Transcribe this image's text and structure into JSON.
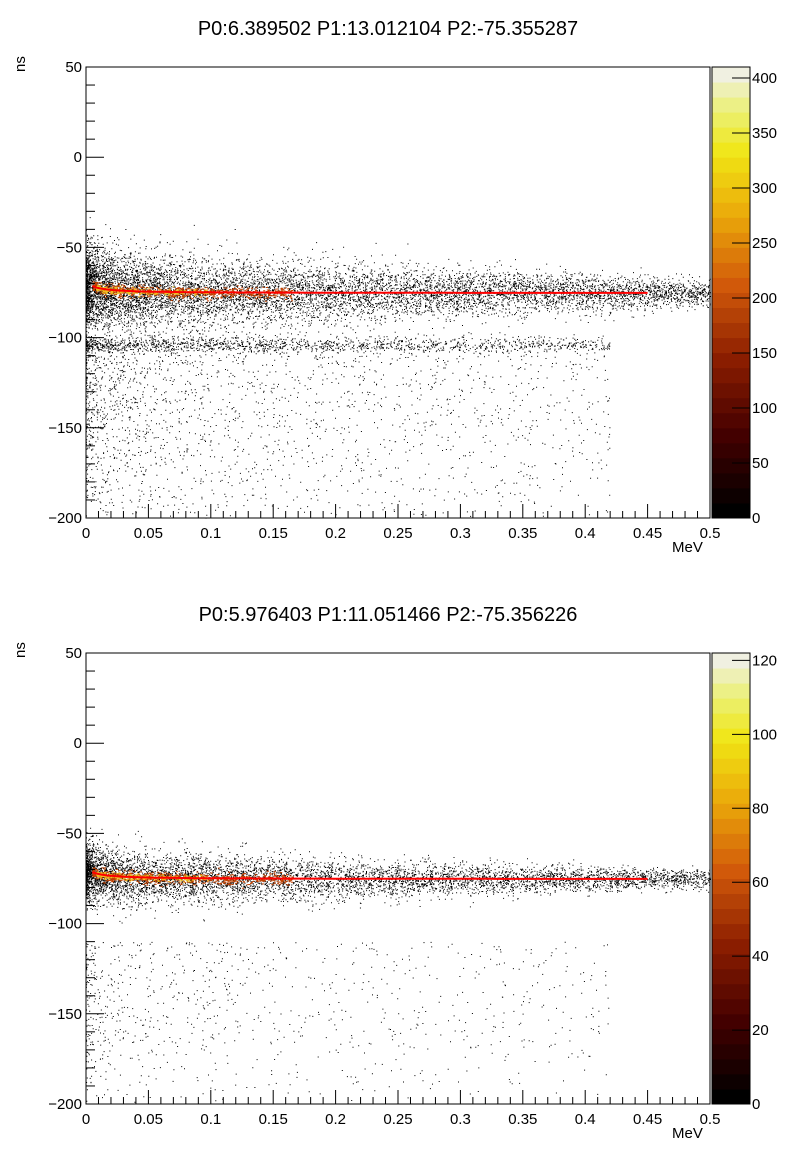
{
  "chart_data": [
    {
      "type": "heatmap",
      "title": "P0:6.389502 P1:13.012104 P2:-75.355287",
      "xlabel": "MeV",
      "ylabel": "ns",
      "xlim": [
        0,
        0.5
      ],
      "ylim": [
        -200,
        50
      ],
      "x_ticks": [
        "0",
        "0.05",
        "0.1",
        "0.15",
        "0.2",
        "0.25",
        "0.3",
        "0.35",
        "0.4",
        "0.45",
        "0.5"
      ],
      "y_ticks": [
        "−200",
        "−150",
        "−100",
        "−50",
        "0",
        "50"
      ],
      "colorbar": {
        "min": 0,
        "max": 410,
        "ticks": [
          "0",
          "50",
          "100",
          "150",
          "200",
          "250",
          "300",
          "350",
          "400"
        ]
      },
      "fit": {
        "P0": 6.389502,
        "P1": 13.012104,
        "P2": -75.355287,
        "x_range": [
          0.005,
          0.45
        ]
      },
      "bands": [
        {
          "center_y": -75,
          "spread_y": 7,
          "x_range": [
            0,
            0.5
          ],
          "density": "high"
        },
        {
          "center_y": -104,
          "spread_y": 2.5,
          "x_range": [
            0,
            0.42
          ],
          "density": "low"
        }
      ]
    },
    {
      "type": "heatmap",
      "title": "P0:5.976403 P1:11.051466 P2:-75.356226",
      "xlabel": "MeV",
      "ylabel": "ns",
      "xlim": [
        0,
        0.5
      ],
      "ylim": [
        -200,
        50
      ],
      "x_ticks": [
        "0",
        "0.05",
        "0.1",
        "0.15",
        "0.2",
        "0.25",
        "0.3",
        "0.35",
        "0.4",
        "0.45",
        "0.5"
      ],
      "y_ticks": [
        "−200",
        "−150",
        "−100",
        "−50",
        "0",
        "50"
      ],
      "colorbar": {
        "min": 0,
        "max": 122,
        "ticks": [
          "0",
          "20",
          "40",
          "60",
          "80",
          "100",
          "120"
        ]
      },
      "fit": {
        "P0": 5.976403,
        "P1": 11.051466,
        "P2": -75.356226,
        "x_range": [
          0.005,
          0.45
        ]
      },
      "bands": [
        {
          "center_y": -75,
          "spread_y": 5,
          "x_range": [
            0,
            0.5
          ],
          "density": "high"
        }
      ]
    }
  ],
  "colors": {
    "fit_line": "#ff0000"
  }
}
